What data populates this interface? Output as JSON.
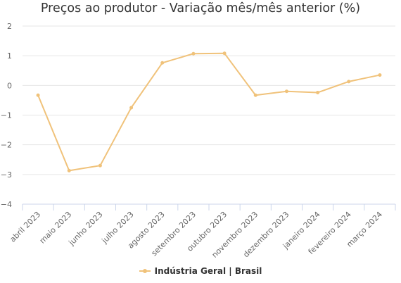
{
  "chart_data": {
    "type": "line",
    "title": "Preços ao produtor - Variação mês/mês anterior (%)",
    "categories": [
      "abril 2023",
      "maio 2023",
      "junho 2023",
      "julho 2023",
      "agosto 2023",
      "setembro 2023",
      "outubro 2023",
      "novembro 2023",
      "dezembro 2023",
      "janeiro 2024",
      "fevereiro 2024",
      "março 2024"
    ],
    "series": [
      {
        "name": "Indústria Geral | Brasil",
        "color": "#f0c27a",
        "values": [
          -0.33,
          -2.87,
          -2.7,
          -0.75,
          0.76,
          1.07,
          1.08,
          -0.33,
          -0.2,
          -0.24,
          0.13,
          0.35
        ]
      }
    ],
    "y_ticks": [
      "2",
      "1",
      "0",
      "−1",
      "−2",
      "−3",
      "−4"
    ],
    "ylim": [
      -4,
      2
    ],
    "grid": true,
    "legend_position": "bottom-center",
    "xlabel": "",
    "ylabel": ""
  }
}
